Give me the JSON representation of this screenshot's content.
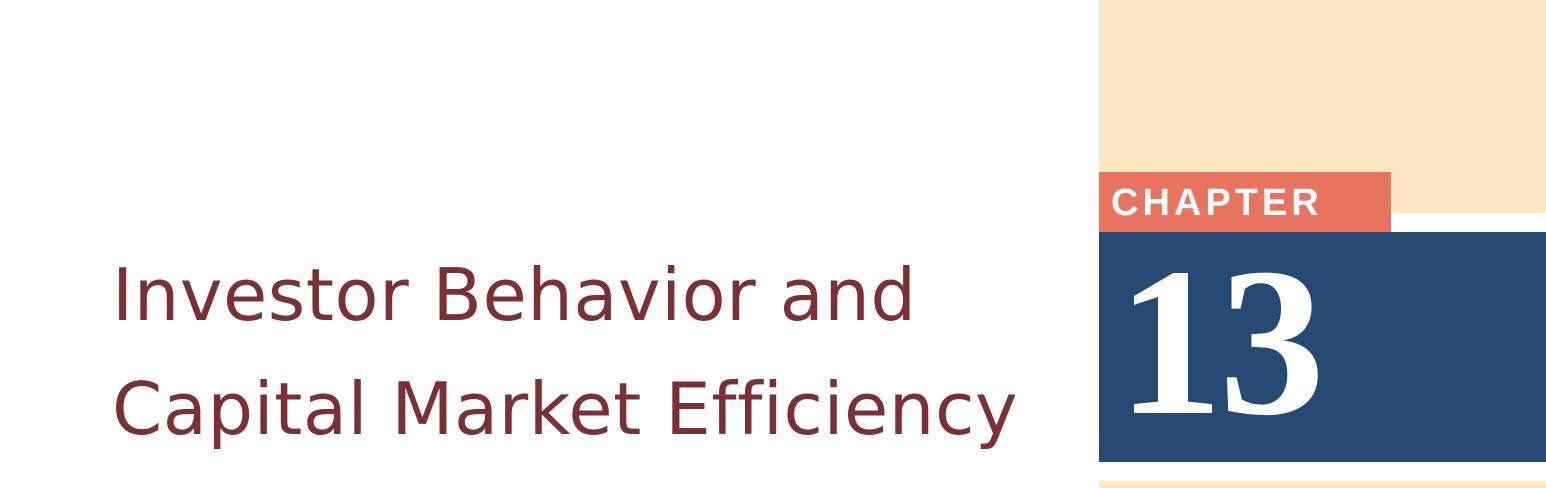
{
  "title": {
    "line1": "Investor Behavior and",
    "line2": "Capital Market Efficiency"
  },
  "chapter": {
    "label": "CHAPTER",
    "number": "13"
  },
  "colors": {
    "title_text": "#7b3134",
    "cream": "#fde8c1",
    "chapter_label_bg": "#e8735f",
    "chapter_number_bg": "#244a74"
  }
}
